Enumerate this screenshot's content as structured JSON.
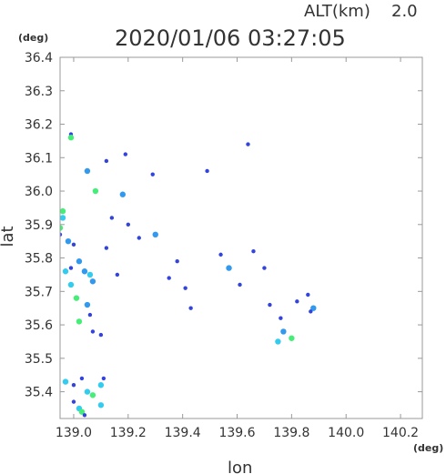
{
  "header": {
    "altitude_label": "ALT(km)",
    "altitude_value": "2.0",
    "timestamp": "2020/01/06 03:27:05"
  },
  "chart_data": {
    "type": "scatter",
    "xlabel": "lon",
    "ylabel": "lat",
    "x_unit": "(deg)",
    "y_unit": "(deg)",
    "xlim": [
      138.95,
      140.28
    ],
    "ylim": [
      35.32,
      36.4
    ],
    "x_ticks": [
      139.0,
      139.2,
      139.4,
      139.6,
      139.8,
      140.0,
      140.2
    ],
    "y_ticks": [
      35.4,
      35.5,
      35.6,
      35.7,
      35.8,
      35.9,
      36.0,
      36.1,
      36.2,
      36.3,
      36.4
    ],
    "x_tick_labels": [
      "139.0",
      "139.2",
      "139.4",
      "139.6",
      "139.8",
      "140.0",
      "140.2"
    ],
    "y_tick_labels": [
      "35.4",
      "35.5",
      "35.6",
      "35.7",
      "35.8",
      "35.9",
      "36.0",
      "36.1",
      "36.2",
      "36.3",
      "36.4"
    ],
    "grid": false,
    "colors": {
      "blue": "#3344dd",
      "lightblue": "#3399ee",
      "cyan": "#33ccee",
      "green": "#44ee77"
    },
    "points": [
      {
        "x": 138.99,
        "y": 36.17,
        "c": "blue"
      },
      {
        "x": 138.99,
        "y": 36.16,
        "c": "green"
      },
      {
        "x": 139.05,
        "y": 36.06,
        "c": "lightblue"
      },
      {
        "x": 139.08,
        "y": 36.0,
        "c": "green"
      },
      {
        "x": 139.12,
        "y": 36.09,
        "c": "blue"
      },
      {
        "x": 139.19,
        "y": 36.11,
        "c": "blue"
      },
      {
        "x": 139.29,
        "y": 36.05,
        "c": "blue"
      },
      {
        "x": 139.64,
        "y": 36.14,
        "c": "blue"
      },
      {
        "x": 139.49,
        "y": 36.06,
        "c": "blue"
      },
      {
        "x": 139.18,
        "y": 35.99,
        "c": "lightblue"
      },
      {
        "x": 138.96,
        "y": 35.94,
        "c": "green"
      },
      {
        "x": 138.96,
        "y": 35.92,
        "c": "cyan"
      },
      {
        "x": 138.95,
        "y": 35.89,
        "c": "green"
      },
      {
        "x": 138.95,
        "y": 35.87,
        "c": "blue"
      },
      {
        "x": 138.98,
        "y": 35.85,
        "c": "lightblue"
      },
      {
        "x": 139.0,
        "y": 35.84,
        "c": "blue"
      },
      {
        "x": 138.97,
        "y": 35.76,
        "c": "cyan"
      },
      {
        "x": 138.99,
        "y": 35.77,
        "c": "blue"
      },
      {
        "x": 139.02,
        "y": 35.79,
        "c": "lightblue"
      },
      {
        "x": 139.04,
        "y": 35.76,
        "c": "lightblue"
      },
      {
        "x": 139.06,
        "y": 35.75,
        "c": "cyan"
      },
      {
        "x": 139.07,
        "y": 35.73,
        "c": "lightblue"
      },
      {
        "x": 138.99,
        "y": 35.72,
        "c": "cyan"
      },
      {
        "x": 139.01,
        "y": 35.68,
        "c": "green"
      },
      {
        "x": 139.05,
        "y": 35.66,
        "c": "lightblue"
      },
      {
        "x": 139.06,
        "y": 35.63,
        "c": "blue"
      },
      {
        "x": 139.07,
        "y": 35.58,
        "c": "blue"
      },
      {
        "x": 139.1,
        "y": 35.57,
        "c": "blue"
      },
      {
        "x": 139.02,
        "y": 35.61,
        "c": "green"
      },
      {
        "x": 139.12,
        "y": 35.83,
        "c": "blue"
      },
      {
        "x": 139.14,
        "y": 35.92,
        "c": "blue"
      },
      {
        "x": 139.2,
        "y": 35.9,
        "c": "blue"
      },
      {
        "x": 139.16,
        "y": 35.75,
        "c": "blue"
      },
      {
        "x": 139.24,
        "y": 35.86,
        "c": "blue"
      },
      {
        "x": 139.3,
        "y": 35.87,
        "c": "lightblue"
      },
      {
        "x": 139.35,
        "y": 35.74,
        "c": "blue"
      },
      {
        "x": 139.38,
        "y": 35.79,
        "c": "blue"
      },
      {
        "x": 139.41,
        "y": 35.71,
        "c": "blue"
      },
      {
        "x": 139.43,
        "y": 35.65,
        "c": "blue"
      },
      {
        "x": 139.54,
        "y": 35.81,
        "c": "blue"
      },
      {
        "x": 139.57,
        "y": 35.77,
        "c": "lightblue"
      },
      {
        "x": 139.61,
        "y": 35.72,
        "c": "blue"
      },
      {
        "x": 139.66,
        "y": 35.82,
        "c": "blue"
      },
      {
        "x": 139.7,
        "y": 35.77,
        "c": "blue"
      },
      {
        "x": 139.72,
        "y": 35.66,
        "c": "blue"
      },
      {
        "x": 139.76,
        "y": 35.62,
        "c": "blue"
      },
      {
        "x": 139.77,
        "y": 35.58,
        "c": "lightblue"
      },
      {
        "x": 139.75,
        "y": 35.55,
        "c": "cyan"
      },
      {
        "x": 139.8,
        "y": 35.56,
        "c": "green"
      },
      {
        "x": 139.82,
        "y": 35.67,
        "c": "blue"
      },
      {
        "x": 139.86,
        "y": 35.69,
        "c": "blue"
      },
      {
        "x": 139.88,
        "y": 35.65,
        "c": "lightblue"
      },
      {
        "x": 139.87,
        "y": 35.64,
        "c": "blue"
      },
      {
        "x": 138.97,
        "y": 35.43,
        "c": "cyan"
      },
      {
        "x": 139.0,
        "y": 35.42,
        "c": "blue"
      },
      {
        "x": 139.03,
        "y": 35.44,
        "c": "blue"
      },
      {
        "x": 139.05,
        "y": 35.4,
        "c": "cyan"
      },
      {
        "x": 139.07,
        "y": 35.39,
        "c": "green"
      },
      {
        "x": 139.1,
        "y": 35.42,
        "c": "cyan"
      },
      {
        "x": 139.0,
        "y": 35.37,
        "c": "blue"
      },
      {
        "x": 139.02,
        "y": 35.35,
        "c": "cyan"
      },
      {
        "x": 139.03,
        "y": 35.34,
        "c": "green"
      },
      {
        "x": 139.1,
        "y": 35.36,
        "c": "cyan"
      },
      {
        "x": 139.11,
        "y": 35.44,
        "c": "blue"
      },
      {
        "x": 139.04,
        "y": 35.33,
        "c": "blue"
      }
    ]
  }
}
